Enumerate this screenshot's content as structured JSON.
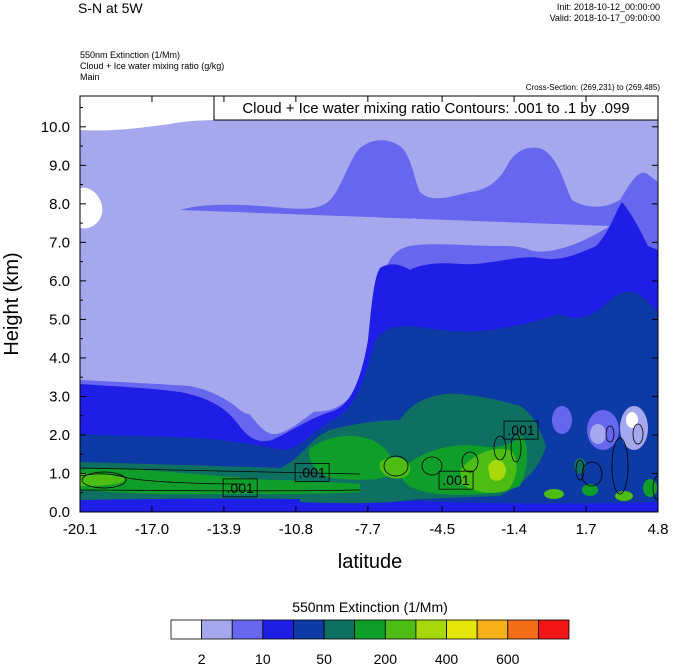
{
  "header": {
    "title": "S-N at 5W",
    "init": "Init: 2018-10-12_00:00:00",
    "valid": "Valid: 2018-10-17_09:00:00",
    "field1": "550nm Extinction   (1/Mm)",
    "field2": "Cloud + Ice water mixing ratio   (g/kg)",
    "field3": "Main",
    "cross_section": "Cross-Section: (269,231) to (269,485)"
  },
  "chart_data": {
    "type": "heatmap",
    "title": "Cloud + Ice water mixing ratio Contours: .001 to .1 by .099",
    "xlabel": "latitude",
    "ylabel": "Height (km)",
    "xlim": [
      -20.1,
      4.8
    ],
    "ylim": [
      0,
      10.8
    ],
    "x_ticks": [
      "-20.1",
      "-17.0",
      "-13.9",
      "-10.8",
      "-7.7",
      "-4.5",
      "-1.4",
      "1.7",
      "4.8"
    ],
    "y_ticks": [
      "0.0",
      "1.0",
      "2.0",
      "3.0",
      "4.0",
      "5.0",
      "6.0",
      "7.0",
      "8.0",
      "9.0",
      "10.0"
    ],
    "contour_labels": [
      {
        "text": ".001",
        "x": -13.2,
        "y": 0.6
      },
      {
        "text": ".001",
        "x": -10.1,
        "y": 1.0
      },
      {
        "text": ".001",
        "x": -3.9,
        "y": 0.8
      },
      {
        "text": ".001",
        "x": -1.1,
        "y": 2.1
      }
    ],
    "colorbar": {
      "title": "550nm Extinction  (1/Mm)",
      "colors": [
        "#ffffff",
        "#a6a8ee",
        "#6666ee",
        "#1e1ee6",
        "#0d3aa5",
        "#0e7060",
        "#0f9e2a",
        "#4dbd13",
        "#a6d80c",
        "#e6e60c",
        "#f5b01a",
        "#f46e1a",
        "#f01414"
      ],
      "labels": [
        "2",
        "10",
        "50",
        "200",
        "400",
        "600"
      ]
    }
  }
}
